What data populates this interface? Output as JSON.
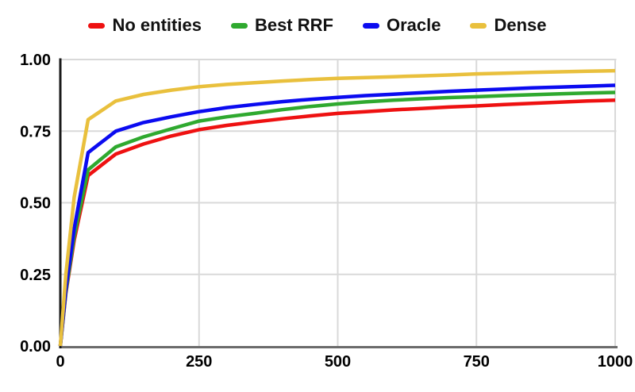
{
  "chart_data": {
    "type": "line",
    "title": "",
    "xlabel": "",
    "ylabel": "",
    "xlim": [
      0,
      1000
    ],
    "ylim": [
      0.0,
      1.0
    ],
    "grid": true,
    "legend_position": "top",
    "gridline_color": "#d9d9d9",
    "axis_left_color": "#1a1a1a",
    "axis_bottom_color": "#6b6b6b",
    "x_ticks": {
      "values": [
        0,
        250,
        500,
        750,
        1000
      ],
      "labels": [
        "0",
        "250",
        "500",
        "750",
        "1000"
      ]
    },
    "y_ticks": {
      "values": [
        0,
        0.25,
        0.5,
        0.75,
        1.0
      ],
      "labels": [
        "0.00",
        "0.25",
        "0.50",
        "0.75",
        "1.00"
      ]
    },
    "x": [
      0,
      10,
      25,
      50,
      100,
      150,
      200,
      250,
      300,
      350,
      400,
      450,
      500,
      550,
      600,
      650,
      700,
      750,
      800,
      850,
      900,
      950,
      1000
    ],
    "series": [
      {
        "name": "No entities",
        "color": "#ee1111",
        "values": [
          0,
          0.185,
          0.37,
          0.595,
          0.67,
          0.705,
          0.733,
          0.755,
          0.77,
          0.782,
          0.793,
          0.803,
          0.812,
          0.818,
          0.824,
          0.829,
          0.834,
          0.838,
          0.843,
          0.847,
          0.851,
          0.855,
          0.858
        ]
      },
      {
        "name": "Best RRF",
        "color": "#2fa92f",
        "values": [
          0,
          0.19,
          0.385,
          0.615,
          0.695,
          0.73,
          0.758,
          0.785,
          0.8,
          0.812,
          0.825,
          0.836,
          0.845,
          0.852,
          0.858,
          0.863,
          0.867,
          0.87,
          0.874,
          0.877,
          0.88,
          0.883,
          0.885
        ]
      },
      {
        "name": "Oracle",
        "color": "#0b0bf0",
        "values": [
          0,
          0.2,
          0.41,
          0.675,
          0.75,
          0.78,
          0.8,
          0.818,
          0.832,
          0.843,
          0.853,
          0.861,
          0.868,
          0.874,
          0.879,
          0.884,
          0.889,
          0.893,
          0.897,
          0.901,
          0.904,
          0.907,
          0.91
        ]
      },
      {
        "name": "Dense",
        "color": "#e9c03d",
        "values": [
          0,
          0.25,
          0.52,
          0.79,
          0.855,
          0.878,
          0.893,
          0.905,
          0.913,
          0.919,
          0.925,
          0.93,
          0.934,
          0.937,
          0.94,
          0.943,
          0.946,
          0.95,
          0.952,
          0.955,
          0.957,
          0.959,
          0.961
        ]
      }
    ]
  }
}
